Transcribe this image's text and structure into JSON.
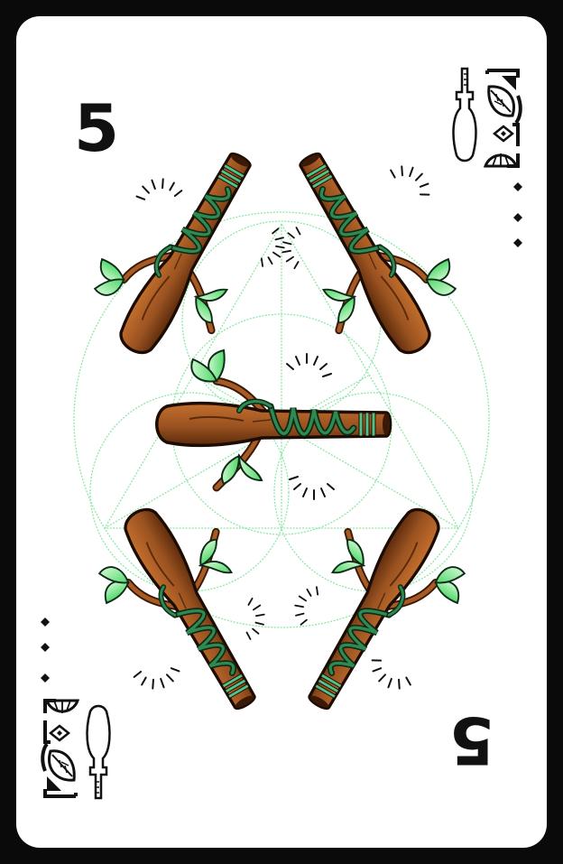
{
  "card": {
    "rank": "5",
    "suit": "wands",
    "suit_count": 5,
    "pip_dots": 3
  },
  "colors": {
    "border": "#0a0a0a",
    "face": "#ffffff",
    "wood": "#9a5220",
    "wood_dark": "#4a2208",
    "wood_light": "#c46f2d",
    "vine": "#1e5a35",
    "vine_light": "#4fc48a",
    "leaf": "#5ee07c",
    "leaf_light": "#c8f7c9",
    "sacred_geometry": "#8fe6a6"
  },
  "icons": {
    "corner_emblem": "sword-leaf-emblem",
    "pip": "diamond-dot-icon",
    "suit": "wand-icon"
  }
}
